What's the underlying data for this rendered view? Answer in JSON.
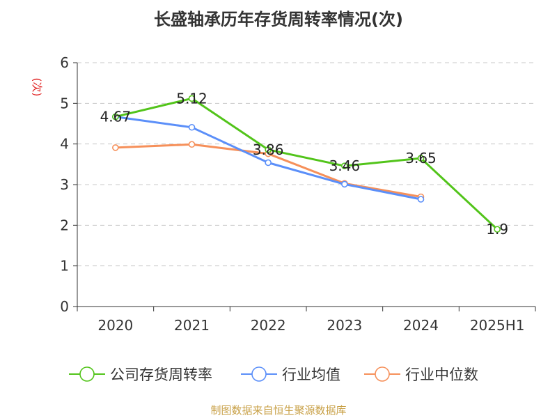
{
  "chart_data": {
    "type": "line",
    "title": "长盛轴承历年存货周转率情况(次)",
    "ylabel": "(次)",
    "xlabel": "",
    "ylim": [
      0,
      6
    ],
    "yticks": [
      0,
      1,
      2,
      3,
      4,
      5,
      6
    ],
    "grid": true,
    "legend_position": "bottom",
    "categories": [
      "2020",
      "2021",
      "2022",
      "2023",
      "2024",
      "2025H1"
    ],
    "series": [
      {
        "name": "公司存货周转率",
        "color": "#52c41a",
        "values": [
          4.67,
          5.12,
          3.86,
          3.46,
          3.65,
          1.9
        ],
        "labels": [
          "4.67",
          "5.12",
          "3.86",
          "3.46",
          "3.65",
          "1.9"
        ]
      },
      {
        "name": "行业均值",
        "color": "#5b8ff9",
        "values": [
          4.67,
          4.41,
          3.54,
          3.01,
          2.64,
          null
        ]
      },
      {
        "name": "行业中位数",
        "color": "#f6905a",
        "values": [
          3.91,
          3.99,
          3.76,
          3.03,
          2.7,
          null
        ]
      }
    ]
  },
  "source": "制图数据来自恒生聚源数据库"
}
